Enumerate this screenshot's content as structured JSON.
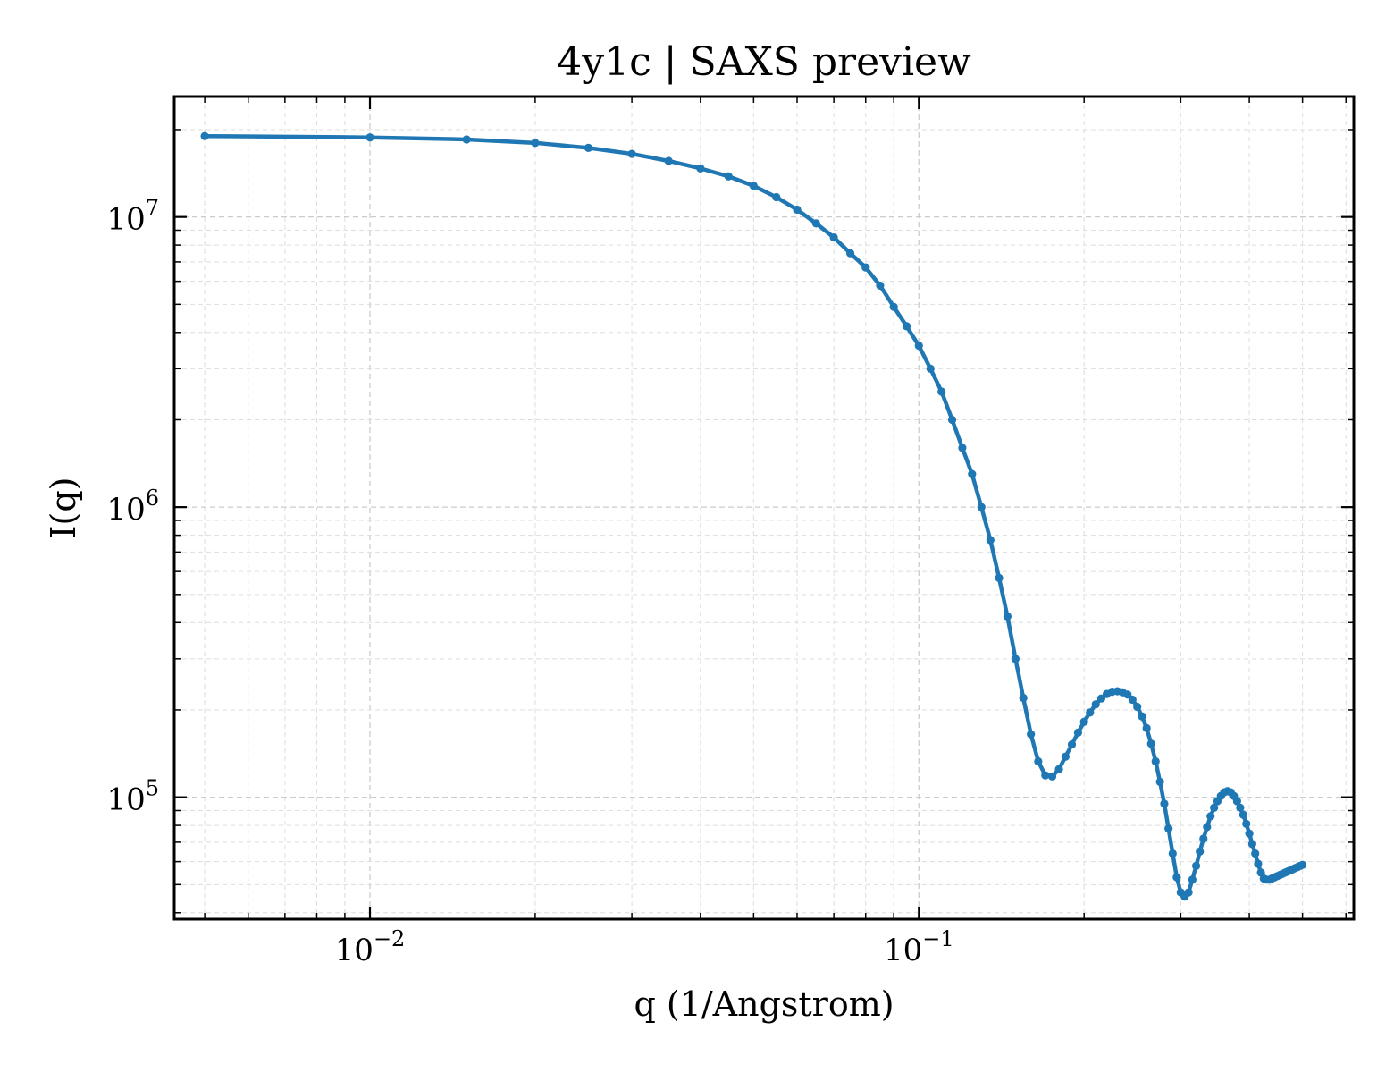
{
  "chart_data": {
    "type": "line",
    "title": "4y1c | SAXS preview",
    "xlabel": "q (1/Angstrom)",
    "ylabel": "I(q)",
    "xscale": "log",
    "yscale": "log",
    "xlim": [
      0.0044,
      0.62
    ],
    "ylim": [
      38000,
      26000000
    ],
    "grid": true,
    "x_ticks": [
      {
        "base": "10",
        "exp": "−2",
        "value": 0.01
      },
      {
        "base": "10",
        "exp": "−1",
        "value": 0.1
      }
    ],
    "y_ticks": [
      {
        "base": "10",
        "exp": "5",
        "value": 100000
      },
      {
        "base": "10",
        "exp": "6",
        "value": 1000000
      },
      {
        "base": "10",
        "exp": "7",
        "value": 10000000
      }
    ],
    "color": "#1f77b4",
    "series": [
      {
        "marker": "circle",
        "x": [
          0.005,
          0.01,
          0.015,
          0.02,
          0.025,
          0.03,
          0.035,
          0.04,
          0.045,
          0.05,
          0.055,
          0.06,
          0.065,
          0.07,
          0.075,
          0.08,
          0.085,
          0.09,
          0.095,
          0.1,
          0.105,
          0.11,
          0.115,
          0.12,
          0.125,
          0.13,
          0.135,
          0.14,
          0.145,
          0.15,
          0.155,
          0.16,
          0.165,
          0.17,
          0.175,
          0.18,
          0.185,
          0.19,
          0.195,
          0.2,
          0.205,
          0.21,
          0.215,
          0.22,
          0.225,
          0.23,
          0.235,
          0.24,
          0.245,
          0.25,
          0.255,
          0.26,
          0.265,
          0.27,
          0.275,
          0.28,
          0.285,
          0.29,
          0.295,
          0.3,
          0.305,
          0.31,
          0.315,
          0.32,
          0.325,
          0.33,
          0.335,
          0.34,
          0.345,
          0.35,
          0.355,
          0.36,
          0.365,
          0.37,
          0.375,
          0.38,
          0.385,
          0.39,
          0.395,
          0.4,
          0.405,
          0.41,
          0.415,
          0.42,
          0.425,
          0.43,
          0.435,
          0.44,
          0.445,
          0.45,
          0.455,
          0.46,
          0.465,
          0.47,
          0.475,
          0.48,
          0.485,
          0.49,
          0.495,
          0.5
        ],
        "y": [
          19000000,
          18800000,
          18500000,
          18000000,
          17300000,
          16500000,
          15600000,
          14700000,
          13800000,
          12800000,
          11700000,
          10600000,
          9500000,
          8500000,
          7500000,
          6700000,
          5800000,
          4900000,
          4200000,
          3600000,
          3000000,
          2500000,
          2000000,
          1600000,
          1300000,
          1000000,
          770000,
          570000,
          420000,
          300000,
          220000,
          165000,
          133000,
          119000,
          118000,
          125000,
          138000,
          152000,
          167000,
          182000,
          196000,
          209000,
          219000,
          227000,
          231000,
          232000,
          230000,
          226000,
          217000,
          205000,
          190000,
          173000,
          153000,
          133000,
          113000,
          95000,
          78000,
          64000,
          53000,
          47000,
          45500,
          47000,
          52000,
          58000,
          65000,
          72000,
          79000,
          86000,
          92000,
          97000,
          101000,
          104000,
          105000,
          104000,
          101000,
          97000,
          92000,
          87000,
          81000,
          75000,
          69000,
          64000,
          59000,
          55000,
          52500,
          52000,
          52000,
          52500,
          53000,
          53500,
          54000,
          54500,
          55000,
          55500,
          56000,
          56500,
          57000,
          57500,
          58000,
          58500
        ]
      }
    ]
  }
}
